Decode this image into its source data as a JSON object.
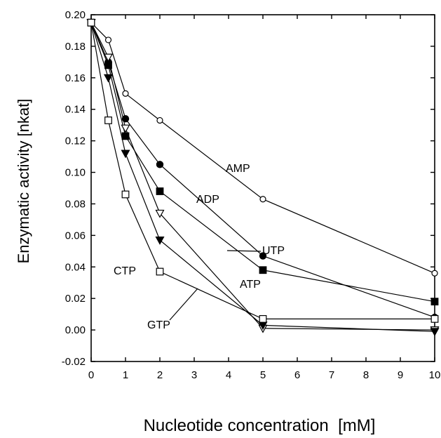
{
  "chart_data": {
    "type": "line",
    "xlabel": "Nucleotide concentration  [mM]",
    "ylabel": "Enzymatic activity [nkat]",
    "xlim": [
      0,
      10
    ],
    "ylim": [
      -0.02,
      0.2
    ],
    "xticks": [
      0,
      1,
      2,
      3,
      4,
      5,
      6,
      7,
      8,
      9,
      10
    ],
    "yticks": [
      -0.02,
      0.0,
      0.02,
      0.04,
      0.06,
      0.08,
      0.1,
      0.12,
      0.14,
      0.16,
      0.18,
      0.2
    ],
    "grid": false,
    "series": [
      {
        "name": "AMP",
        "marker": "open-circle",
        "x": [
          0,
          0.5,
          1,
          2,
          5,
          10
        ],
        "y": [
          0.195,
          0.184,
          0.15,
          0.133,
          0.083,
          0.036
        ]
      },
      {
        "name": "ADP",
        "marker": "filled-circle",
        "x": [
          0,
          0.5,
          1,
          2,
          5,
          10
        ],
        "y": [
          0.195,
          0.17,
          0.134,
          0.105,
          0.047,
          0.008
        ]
      },
      {
        "name": "UTP",
        "marker": "filled-square",
        "x": [
          0,
          0.5,
          1,
          2,
          5,
          10
        ],
        "y": [
          0.195,
          0.168,
          0.123,
          0.088,
          0.038,
          0.018
        ]
      },
      {
        "name": "ATP",
        "marker": "open-triangle-down",
        "x": [
          0,
          0.5,
          1,
          2,
          5,
          10
        ],
        "y": [
          0.195,
          0.173,
          0.128,
          0.074,
          0.001,
          0.0
        ]
      },
      {
        "name": "GTP",
        "marker": "filled-triangle-down",
        "x": [
          0,
          0.5,
          1,
          2,
          5,
          10
        ],
        "y": [
          0.195,
          0.16,
          0.112,
          0.057,
          0.003,
          -0.001
        ]
      },
      {
        "name": "CTP",
        "marker": "open-square",
        "x": [
          0,
          0.5,
          1,
          2,
          5,
          10
        ],
        "y": [
          0.195,
          0.133,
          0.086,
          0.037,
          0.007,
          0.007
        ]
      }
    ]
  }
}
